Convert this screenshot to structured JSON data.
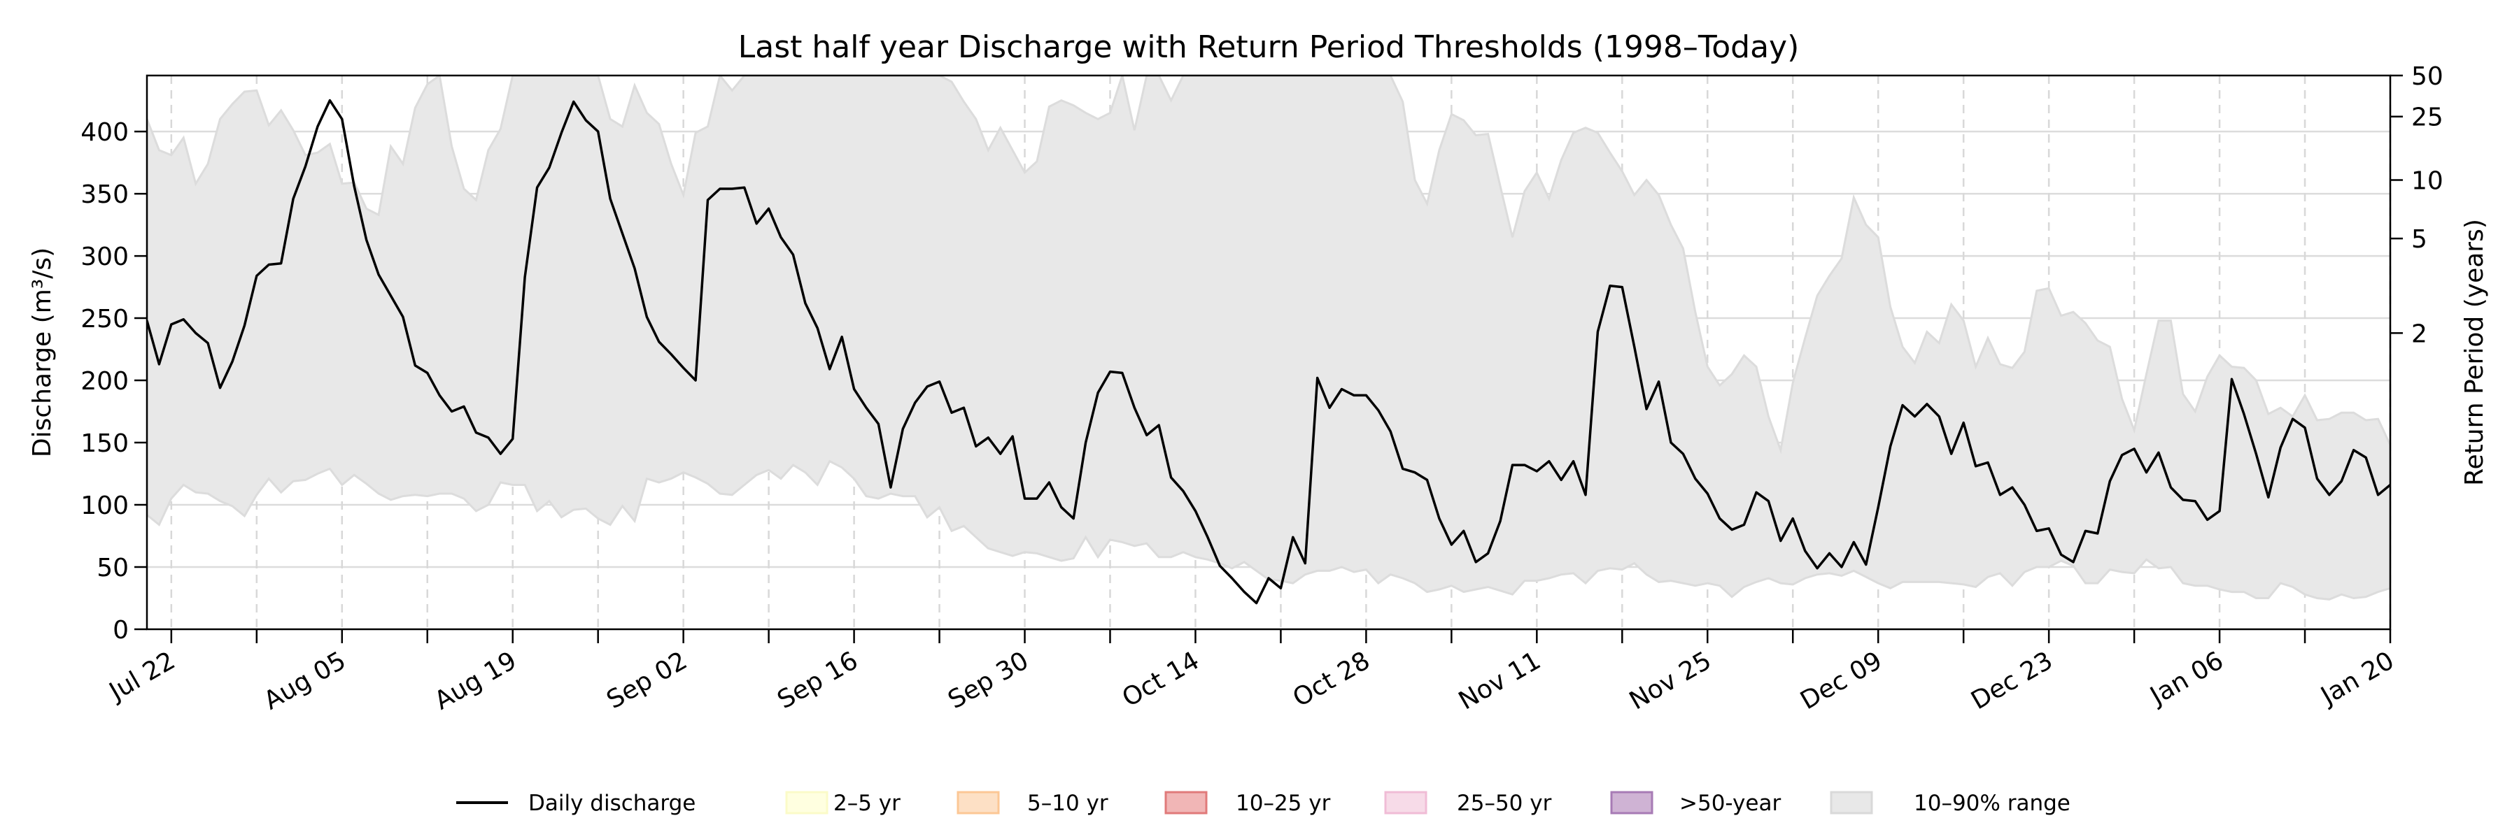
{
  "chart_data": {
    "type": "line",
    "title": "Last half year Discharge with Return Period Thresholds (1998–Today)",
    "xlabel": "",
    "ylabel": "Discharge (m³/s)",
    "y2label": "Return Period (years)",
    "xlim": [
      "Jul 20",
      "Jan 20"
    ],
    "x_frequency": "daily",
    "ylim": [
      0,
      445
    ],
    "yticks": [
      0,
      50,
      100,
      150,
      200,
      250,
      300,
      350,
      400
    ],
    "xtick_labels": [
      "Jul 22",
      "Aug 05",
      "Aug 19",
      "Sep 02",
      "Sep 16",
      "Sep 30",
      "Oct 14",
      "Oct 28",
      "Nov 11",
      "Nov 25",
      "Dec 09",
      "Dec 23",
      "Jan 06",
      "Jan 20"
    ],
    "return_period_ticks": [
      {
        "label": "2",
        "discharge": 238
      },
      {
        "label": "5",
        "discharge": 314
      },
      {
        "label": "10",
        "discharge": 361
      },
      {
        "label": "25",
        "discharge": 412
      },
      {
        "label": "50",
        "discharge": 445
      }
    ],
    "grid": true,
    "legend_placement": "bottom-center",
    "series": [
      {
        "name": "Daily discharge",
        "color": "#000000",
        "values": [
          248,
          213,
          245,
          249,
          238,
          230,
          194,
          215,
          244,
          284,
          293,
          294,
          346,
          372,
          404,
          425,
          410,
          356,
          313,
          285,
          268,
          251,
          212,
          206,
          188,
          175,
          179,
          158,
          154,
          141,
          153,
          283,
          355,
          371,
          399,
          424,
          409,
          400,
          346,
          318,
          290,
          251,
          231,
          221,
          210,
          200,
          345,
          354,
          354,
          355,
          326,
          338,
          315,
          301,
          262,
          242,
          209,
          235,
          193,
          178,
          165,
          114,
          161,
          182,
          195,
          199,
          174,
          178,
          147,
          154,
          141,
          155,
          105,
          105,
          118,
          98,
          89,
          150,
          190,
          207,
          206,
          178,
          156,
          164,
          122,
          111,
          95,
          74,
          51,
          41,
          30,
          21,
          41,
          33,
          74,
          53,
          202,
          178,
          193,
          188,
          188,
          176,
          159,
          129,
          126,
          120,
          89,
          68,
          79,
          54,
          61,
          87,
          132,
          132,
          127,
          135,
          120,
          135,
          108,
          239,
          276,
          275,
          227,
          177,
          199,
          150,
          141,
          121,
          109,
          89,
          80,
          84,
          110,
          103,
          71,
          89,
          63,
          49,
          61,
          50,
          70,
          52,
          98,
          147,
          180,
          171,
          181,
          171,
          141,
          166,
          131,
          134,
          108,
          114,
          100,
          79,
          81,
          60,
          54,
          79,
          77,
          119,
          140,
          145,
          126,
          142,
          114,
          104,
          103,
          88,
          95,
          201,
          173,
          141,
          106,
          146,
          169,
          162,
          121,
          108,
          119,
          144,
          138,
          108,
          116
        ]
      }
    ],
    "band": {
      "name": "10–90% range",
      "color": "#e8e8e8",
      "upper": [
        410,
        385,
        381,
        395,
        358,
        374,
        410,
        422,
        432,
        433,
        405,
        417,
        401,
        381,
        383,
        390,
        358,
        359,
        338,
        333,
        388,
        374,
        419,
        438,
        445,
        388,
        354,
        345,
        385,
        402,
        445,
        445,
        445,
        445,
        445,
        445,
        445,
        445,
        410,
        404,
        437,
        415,
        406,
        374,
        349,
        399,
        404,
        445,
        433,
        445,
        445,
        445,
        445,
        445,
        445,
        445,
        445,
        445,
        445,
        445,
        445,
        445,
        445,
        445,
        445,
        445,
        440,
        424,
        410,
        385,
        403,
        385,
        367,
        376,
        420,
        425,
        421,
        415,
        410,
        415,
        445,
        401,
        445,
        445,
        425,
        445,
        445,
        445,
        445,
        445,
        445,
        445,
        445,
        445,
        445,
        445,
        445,
        445,
        445,
        445,
        445,
        445,
        445,
        424,
        361,
        342,
        385,
        414,
        409,
        397,
        398,
        356,
        315,
        352,
        367,
        346,
        377,
        399,
        403,
        399,
        383,
        368,
        349,
        361,
        349,
        325,
        306,
        255,
        211,
        196,
        205,
        220,
        211,
        171,
        144,
        198,
        234,
        268,
        284,
        298,
        347,
        325,
        315,
        259,
        227,
        214,
        239,
        230,
        261,
        248,
        211,
        234,
        213,
        210,
        223,
        272,
        274,
        252,
        255,
        246,
        232,
        227,
        185,
        160,
        205,
        248,
        248,
        189,
        175,
        203,
        220,
        211,
        210,
        200,
        173,
        178,
        171,
        188,
        168,
        169,
        174,
        174,
        168,
        169,
        148
      ],
      "lower": [
        92,
        84,
        105,
        116,
        110,
        109,
        103,
        99,
        91,
        108,
        121,
        110,
        119,
        120,
        125,
        129,
        116,
        124,
        117,
        109,
        104,
        107,
        108,
        107,
        109,
        109,
        105,
        95,
        100,
        118,
        116,
        116,
        95,
        103,
        90,
        96,
        97,
        89,
        84,
        99,
        87,
        121,
        118,
        121,
        126,
        122,
        117,
        109,
        108,
        116,
        124,
        128,
        121,
        132,
        126,
        116,
        135,
        130,
        121,
        107,
        105,
        109,
        107,
        107,
        90,
        98,
        79,
        83,
        74,
        65,
        62,
        59,
        62,
        61,
        58,
        55,
        57,
        74,
        58,
        72,
        70,
        67,
        69,
        58,
        58,
        62,
        58,
        56,
        53,
        49,
        54,
        47,
        40,
        39,
        37,
        44,
        47,
        47,
        50,
        46,
        48,
        37,
        44,
        41,
        37,
        30,
        32,
        35,
        30,
        32,
        34,
        31,
        28,
        39,
        39,
        41,
        44,
        45,
        37,
        47,
        49,
        48,
        53,
        44,
        38,
        39,
        37,
        35,
        37,
        35,
        26,
        34,
        38,
        41,
        37,
        36,
        41,
        44,
        45,
        43,
        47,
        42,
        37,
        33,
        38,
        38,
        38,
        38,
        37,
        36,
        34,
        42,
        45,
        35,
        46,
        50,
        50,
        55,
        51,
        37,
        37,
        48,
        46,
        45,
        56,
        49,
        50,
        37,
        35,
        35,
        32,
        30,
        30,
        25,
        25,
        37,
        34,
        28,
        25,
        24,
        28,
        25,
        26,
        30,
        33
      ]
    },
    "legend": [
      {
        "label": "Daily discharge",
        "kind": "line",
        "color": "#000000"
      },
      {
        "label": "2–5 yr",
        "kind": "patch",
        "color": "#ffffe0",
        "edge": "#fbfbc8"
      },
      {
        "label": "5–10 yr",
        "kind": "patch",
        "color": "#fde0c5",
        "edge": "#fcc795"
      },
      {
        "label": "10–25 yr",
        "kind": "patch",
        "color": "#f1b6b6",
        "edge": "#e07a7a"
      },
      {
        "label": "25–50 yr",
        "kind": "patch",
        "color": "#f7dbe8",
        "edge": "#f0bcd6"
      },
      {
        "label": ">50-year",
        "kind": "patch",
        "color": "#cfb3d4",
        "edge": "#a77bb5"
      },
      {
        "label": "10–90% range",
        "kind": "patch",
        "color": "#e8e8e8",
        "edge": "#d9d9d9"
      }
    ]
  }
}
